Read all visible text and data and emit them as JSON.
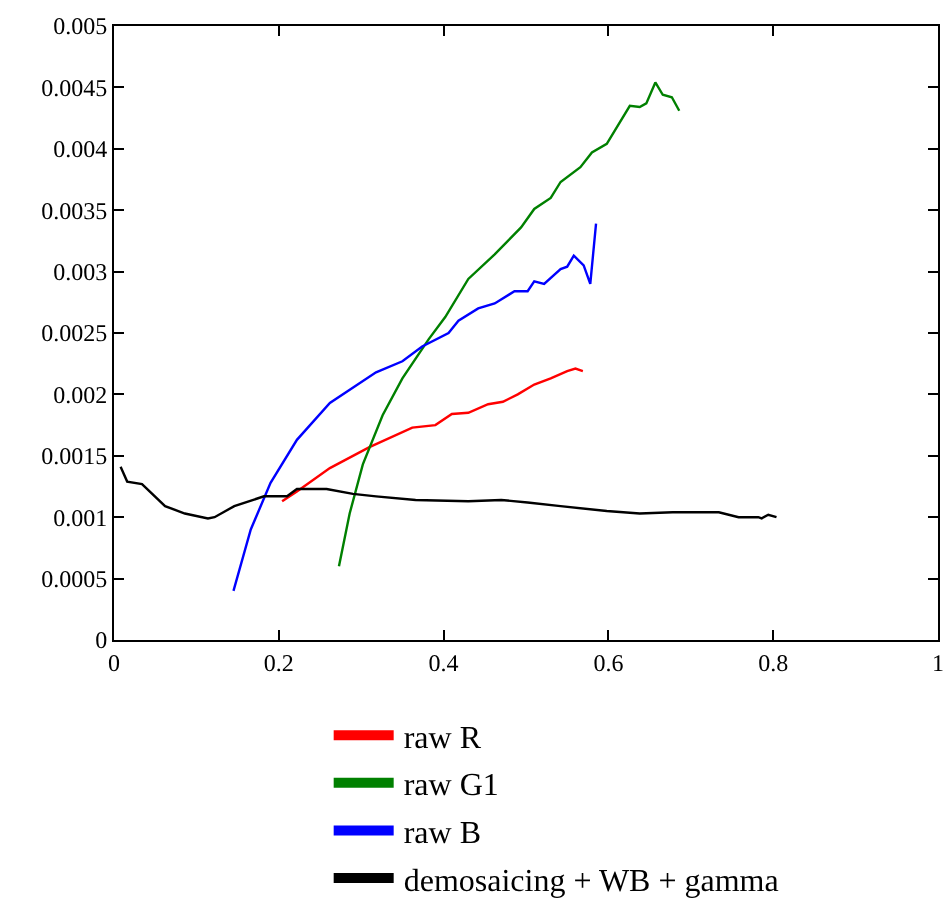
{
  "chart_data": {
    "type": "line",
    "xlim": [
      0,
      1
    ],
    "ylim": [
      0,
      0.005
    ],
    "xticks": [
      0,
      0.2,
      0.4,
      0.6,
      0.8,
      1
    ],
    "yticks": [
      0,
      0.0005,
      0.001,
      0.0015,
      0.002,
      0.0025,
      0.003,
      0.0035,
      0.004,
      0.0045,
      0.005
    ],
    "legend": "bottom",
    "marker": "none",
    "line_style": "solid",
    "series": [
      {
        "name": "raw R",
        "color": "#ff0000",
        "x": [
          0.204,
          0.222,
          0.262,
          0.31,
          0.362,
          0.39,
          0.41,
          0.43,
          0.454,
          0.472,
          0.49,
          0.51,
          0.53,
          0.55,
          0.56,
          0.569
        ],
        "values": [
          0.00113,
          0.00121,
          0.0014,
          0.00157,
          0.00173,
          0.00175,
          0.00184,
          0.00185,
          0.00192,
          0.00194,
          0.002,
          0.00208,
          0.00213,
          0.00219,
          0.00221,
          0.00219
        ]
      },
      {
        "name": "raw G1",
        "color": "#008000",
        "x": [
          0.273,
          0.286,
          0.302,
          0.326,
          0.35,
          0.382,
          0.402,
          0.43,
          0.462,
          0.494,
          0.51,
          0.53,
          0.542,
          0.566,
          0.58,
          0.598,
          0.626,
          0.638,
          0.646,
          0.657,
          0.666,
          0.677,
          0.686
        ],
        "values": [
          0.0006,
          0.00103,
          0.00143,
          0.00183,
          0.00213,
          0.00245,
          0.00263,
          0.00294,
          0.00314,
          0.00336,
          0.00351,
          0.0036,
          0.00373,
          0.00385,
          0.00397,
          0.00404,
          0.00435,
          0.00434,
          0.00437,
          0.00454,
          0.00444,
          0.00442,
          0.00431
        ]
      },
      {
        "name": "raw B",
        "color": "#0000ff",
        "x": [
          0.145,
          0.166,
          0.19,
          0.222,
          0.262,
          0.318,
          0.35,
          0.374,
          0.406,
          0.418,
          0.442,
          0.462,
          0.486,
          0.502,
          0.51,
          0.522,
          0.542,
          0.55,
          0.558,
          0.57,
          0.578,
          0.585
        ],
        "values": [
          0.0004,
          0.0009,
          0.00128,
          0.00163,
          0.00193,
          0.00218,
          0.00227,
          0.00239,
          0.0025,
          0.0026,
          0.0027,
          0.00274,
          0.00284,
          0.00284,
          0.00292,
          0.0029,
          0.00302,
          0.00304,
          0.00313,
          0.00305,
          0.0029,
          0.00339
        ]
      },
      {
        "name": "demosaicing + WB + gamma",
        "color": "#000000",
        "x": [
          0.008,
          0.016,
          0.034,
          0.062,
          0.086,
          0.114,
          0.122,
          0.146,
          0.182,
          0.21,
          0.222,
          0.258,
          0.29,
          0.318,
          0.366,
          0.43,
          0.47,
          0.502,
          0.542,
          0.598,
          0.638,
          0.678,
          0.734,
          0.758,
          0.782,
          0.786,
          0.794,
          0.804
        ],
        "values": [
          0.00141,
          0.00129,
          0.00127,
          0.00109,
          0.00103,
          0.00099,
          0.001,
          0.00109,
          0.00117,
          0.00117,
          0.00123,
          0.00123,
          0.00119,
          0.00117,
          0.00114,
          0.00113,
          0.00114,
          0.00112,
          0.00109,
          0.00105,
          0.00103,
          0.00104,
          0.00104,
          0.001,
          0.001,
          0.00099,
          0.00102,
          0.001
        ]
      }
    ]
  }
}
